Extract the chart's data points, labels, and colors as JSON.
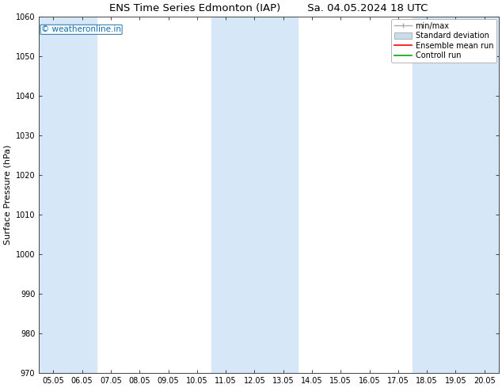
{
  "title_left": "ENS Time Series Edmonton (IAP)",
  "title_right": "Sa. 04.05.2024 18 UTC",
  "ylabel": "Surface Pressure (hPa)",
  "ylim": [
    970,
    1060
  ],
  "yticks": [
    970,
    980,
    990,
    1000,
    1010,
    1020,
    1030,
    1040,
    1050,
    1060
  ],
  "xtick_labels": [
    "05.05",
    "06.05",
    "07.05",
    "08.05",
    "09.05",
    "10.05",
    "11.05",
    "12.05",
    "13.05",
    "14.05",
    "15.05",
    "16.05",
    "17.05",
    "18.05",
    "19.05",
    "20.05"
  ],
  "shaded_bands_idx": [
    {
      "xstart": 0,
      "xend": 1
    },
    {
      "xstart": 6,
      "xend": 8
    },
    {
      "xstart": 13,
      "xend": 15
    }
  ],
  "shaded_color": "#d6e8f7",
  "watermark_text": "© weatheronline.in",
  "watermark_color": "#1a6ea8",
  "background_color": "#ffffff",
  "legend_entries": [
    {
      "label": "min/max"
    },
    {
      "label": "Standard deviation"
    },
    {
      "label": "Ensemble mean run"
    },
    {
      "label": "Controll run"
    }
  ],
  "legend_colors": [
    "#aaaaaa",
    "#c8dcea",
    "#ff0000",
    "#00aa00"
  ],
  "title_fontsize": 9.5,
  "tick_fontsize": 7,
  "ylabel_fontsize": 8,
  "legend_fontsize": 7
}
